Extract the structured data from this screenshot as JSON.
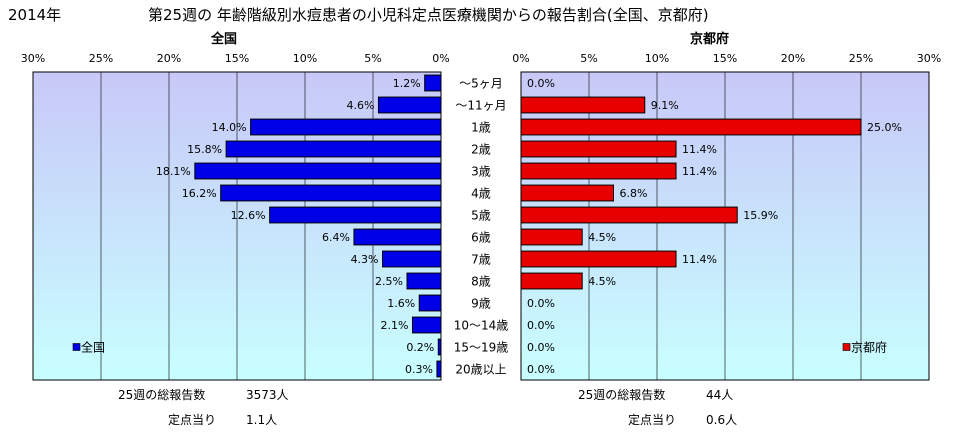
{
  "header": {
    "year": "2014年",
    "title": "第25週の 年齢階級別水痘患者の小児科定点医療機関からの報告割合(全国、京都府)"
  },
  "colors": {
    "national": "#0000e6",
    "kyoto": "#e60000",
    "plot_gradient_top": "#c8c8f8",
    "plot_gradient_bottom": "#c8ffff",
    "grid": "#000000"
  },
  "chart_data": [
    {
      "type": "bar",
      "orientation": "horizontal",
      "direction": "right-to-left",
      "title": "全国",
      "legend": "全国",
      "legend_position": "bottom-left",
      "xlim": [
        0,
        30
      ],
      "x_ticks": [
        "30%",
        "25%",
        "20%",
        "15%",
        "10%",
        "5%",
        "0%"
      ],
      "categories": [
        "～5ヶ月",
        "～11ヶ月",
        "1歳",
        "2歳",
        "3歳",
        "4歳",
        "5歳",
        "6歳",
        "7歳",
        "8歳",
        "9歳",
        "10～14歳",
        "15～19歳",
        "20歳以上"
      ],
      "values": [
        1.2,
        4.6,
        14.0,
        15.8,
        18.1,
        16.2,
        12.6,
        6.4,
        4.3,
        2.5,
        1.6,
        2.1,
        0.2,
        0.3
      ],
      "value_labels": [
        "1.2%",
        "4.6%",
        "14.0%",
        "15.8%",
        "18.1%",
        "16.2%",
        "12.6%",
        "6.4%",
        "4.3%",
        "2.5%",
        "1.6%",
        "2.1%",
        "0.2%",
        "0.3%"
      ],
      "grid": true
    },
    {
      "type": "bar",
      "orientation": "horizontal",
      "direction": "left-to-right",
      "title": "京都府",
      "legend": "京都府",
      "legend_position": "bottom-right",
      "xlim": [
        0,
        30
      ],
      "x_ticks": [
        "0%",
        "5%",
        "10%",
        "15%",
        "20%",
        "25%",
        "30%"
      ],
      "categories": [
        "～5ヶ月",
        "～11ヶ月",
        "1歳",
        "2歳",
        "3歳",
        "4歳",
        "5歳",
        "6歳",
        "7歳",
        "8歳",
        "9歳",
        "10～14歳",
        "15～19歳",
        "20歳以上"
      ],
      "values": [
        0.0,
        9.1,
        25.0,
        11.4,
        11.4,
        6.8,
        15.9,
        4.5,
        11.4,
        4.5,
        0.0,
        0.0,
        0.0,
        0.0
      ],
      "value_labels": [
        "0.0%",
        "9.1%",
        "25.0%",
        "11.4%",
        "11.4%",
        "6.8%",
        "15.9%",
        "4.5%",
        "11.4%",
        "4.5%",
        "0.0%",
        "0.0%",
        "0.0%",
        "0.0%"
      ],
      "grid": true
    }
  ],
  "footer": {
    "national": {
      "total_label": "25週の総報告数",
      "total_value": "3573人",
      "per_label": "定点当り",
      "per_value": "1.1人"
    },
    "kyoto": {
      "total_label": "25週の総報告数",
      "total_value": "44人",
      "per_label": "定点当り",
      "per_value": "0.6人"
    }
  }
}
